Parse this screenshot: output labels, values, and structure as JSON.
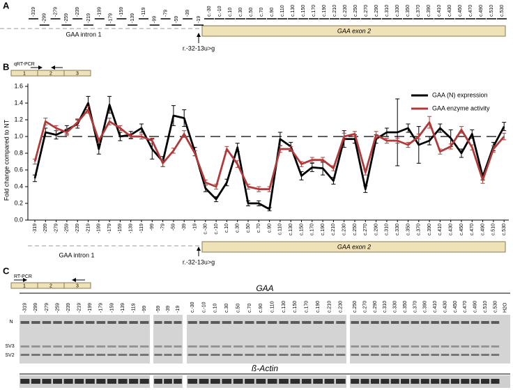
{
  "panel_labels": [
    "A",
    "B",
    "C"
  ],
  "panel_a": {
    "labels": [
      "-319",
      "-299",
      "-279",
      "-259",
      "-239",
      "-219",
      "-199",
      "-179",
      "-159",
      "-139",
      "-119",
      "-99",
      "-79",
      "-59",
      "-39",
      "-19",
      "c.-30",
      "c.-10",
      "c.10",
      "c.30",
      "c.50",
      "c.70",
      "c.90",
      "c.110",
      "c.130",
      "c.150",
      "c.170",
      "c.190",
      "c.210",
      "c.230",
      "c.250",
      "c.270",
      "c.290",
      "c.310",
      "c.330",
      "c.350",
      "c.370",
      "c.390",
      "c.410",
      "c.430",
      "c.450",
      "c.470",
      "c.490",
      "c.510",
      "c.530"
    ],
    "intron": "GAA intron 1",
    "exon": "GAA exon 2",
    "variant": "r.-32-13u>g"
  },
  "chart_data": {
    "type": "line",
    "ylabel": "Fold change compared to NT",
    "categories": [
      "-319",
      "-299",
      "-279",
      "-259",
      "-239",
      "-219",
      "-199",
      "-179",
      "-159",
      "-139",
      "-119",
      "-99",
      "-79",
      "-59",
      "-39",
      "-19",
      "c.-30",
      "c.-10",
      "c.10",
      "c.30",
      "c.50",
      "c.70",
      "c.90",
      "c.110",
      "c.130",
      "c.150",
      "c.170",
      "c.190",
      "c.210",
      "c.230",
      "c.250",
      "c.270",
      "c.290",
      "c.310",
      "c.330",
      "c.350",
      "c.370",
      "c.390",
      "c.410",
      "c.430",
      "c.450",
      "c.470",
      "c.490",
      "c.510",
      "c.530"
    ],
    "series": [
      {
        "name": "GAA (N) expression",
        "color": "#000000",
        "values": [
          0.5,
          1.05,
          1.02,
          1.08,
          1.15,
          1.4,
          0.85,
          1.38,
          1.0,
          1.02,
          1.1,
          0.85,
          0.7,
          1.25,
          1.22,
          0.82,
          0.38,
          0.25,
          0.45,
          0.87,
          0.2,
          0.2,
          0.13,
          0.97,
          0.88,
          0.53,
          0.63,
          0.62,
          0.47,
          0.97,
          0.97,
          0.37,
          0.97,
          1.05,
          1.05,
          1.1,
          0.9,
          0.95,
          1.1,
          0.98,
          0.8,
          1.03,
          0.52,
          0.88,
          1.12
        ],
        "errors": [
          0.04,
          0.05,
          0.05,
          0.05,
          0.05,
          0.08,
          0.06,
          0.1,
          0.05,
          0.04,
          0.05,
          0.12,
          0.06,
          0.12,
          0.1,
          0.05,
          0.04,
          0.03,
          0.04,
          0.05,
          0.03,
          0.03,
          0.02,
          0.08,
          0.05,
          0.05,
          0.05,
          0.08,
          0.04,
          0.1,
          0.05,
          0.04,
          0.05,
          0.05,
          0.4,
          0.05,
          0.22,
          0.05,
          0.05,
          0.1,
          0.05,
          0.05,
          0.04,
          0.05,
          0.05
        ]
      },
      {
        "name": "GAA enzyme activity",
        "color": "#b03a3a",
        "values": [
          0.7,
          1.18,
          1.1,
          1.05,
          1.17,
          1.32,
          0.95,
          1.18,
          1.1,
          1.0,
          1.0,
          0.95,
          0.68,
          0.83,
          1.03,
          0.8,
          0.45,
          0.4,
          0.85,
          0.67,
          0.4,
          0.37,
          0.37,
          0.85,
          0.85,
          0.67,
          0.72,
          0.72,
          0.62,
          1.0,
          1.03,
          0.57,
          1.02,
          0.95,
          0.95,
          0.9,
          1.0,
          1.17,
          0.82,
          0.88,
          1.08,
          0.87,
          0.48,
          0.85,
          1.0
        ],
        "errors": [
          0.03,
          0.04,
          0.03,
          0.04,
          0.04,
          0.04,
          0.03,
          0.04,
          0.03,
          0.03,
          0.03,
          0.03,
          0.04,
          0.03,
          0.04,
          0.03,
          0.03,
          0.03,
          0.03,
          0.04,
          0.03,
          0.03,
          0.03,
          0.04,
          0.03,
          0.03,
          0.03,
          0.03,
          0.03,
          0.04,
          0.03,
          0.03,
          0.04,
          0.03,
          0.03,
          0.03,
          0.03,
          0.07,
          0.03,
          0.03,
          0.04,
          0.03,
          0.04,
          0.04,
          0.04
        ]
      }
    ],
    "ylim": [
      0,
      1.6
    ],
    "yticks": [
      {
        "value": 0,
        "label": "0.0"
      },
      0.2,
      0.4,
      0.6,
      0.8,
      {
        "value": 1,
        "label": "1.0"
      },
      1.2,
      1.4,
      1.6
    ],
    "reference_y": 1,
    "legend": "upper right",
    "primer_label": "qRT-PCR",
    "exons": [
      "1",
      "2",
      "3"
    ],
    "intron": "GAA intron 1",
    "exon": "GAA exon 2",
    "variant": "r.-32-13u>g"
  },
  "panel_c": {
    "primer_label": "RT-PCR",
    "exons": [
      "1",
      "2",
      "3"
    ],
    "gene": "GAA",
    "control": "ß-Actin",
    "bands": [
      "N",
      "SV3",
      "SV2"
    ],
    "lane_groups": [
      [
        "-319",
        "-299",
        "-279",
        "-259",
        "-239",
        "-219",
        "-199",
        "-179",
        "-159",
        "-139",
        "-119",
        "-99"
      ],
      [
        "-59",
        "-39",
        "-19"
      ],
      [
        "c.-30",
        "c.-10",
        "c.10",
        "c.30",
        "c.50",
        "c.70",
        "c.90",
        "c.110",
        "c.130",
        "c.150",
        "c.170",
        "c.190",
        "c.210",
        "c.230"
      ],
      [
        "c.250",
        "c.270",
        "c.290",
        "c.310",
        "c.330",
        "c.350",
        "c.370",
        "c.390",
        "c.410",
        "c.430",
        "c.450",
        "c.470",
        "c.490",
        "c.510",
        "c.530",
        "H2O"
      ]
    ]
  }
}
